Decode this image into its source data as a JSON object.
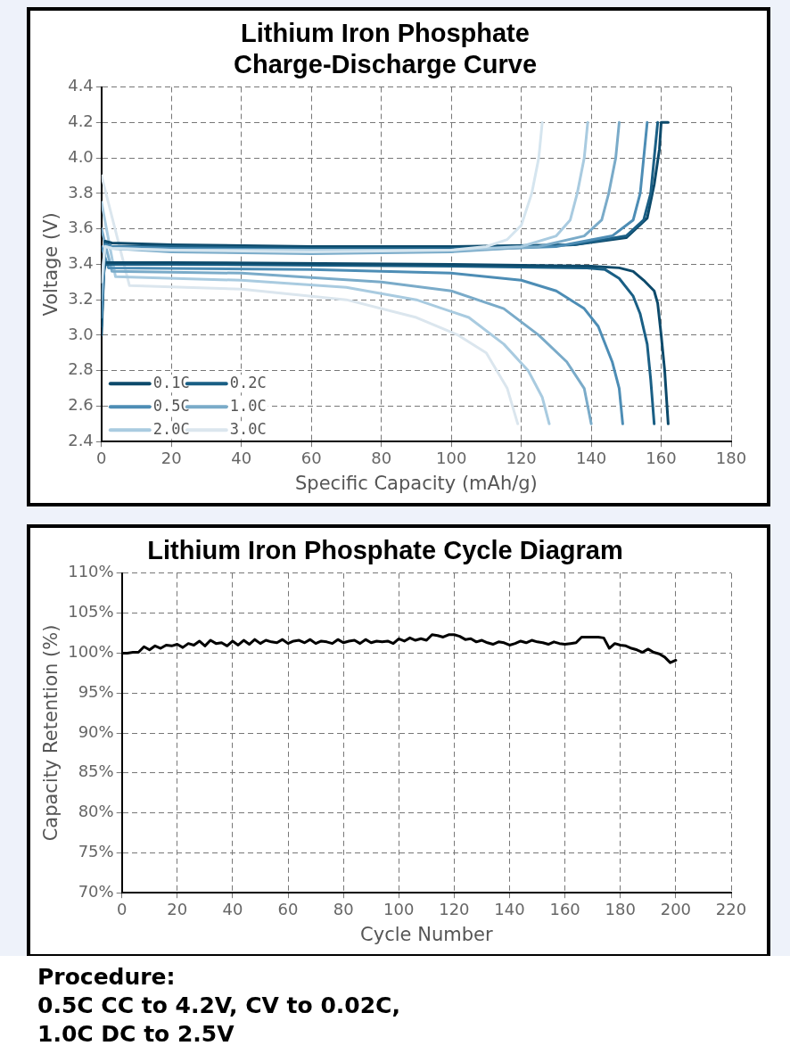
{
  "chart_data": [
    {
      "type": "line",
      "title": "Lithium Iron Phosphate\nCharge-Discharge Curve",
      "xlabel": "Specific Capacity (mAh/g)",
      "ylabel": "Voltage (V)",
      "xlim": [
        0,
        180
      ],
      "xticks": [
        0,
        20,
        40,
        60,
        80,
        100,
        120,
        140,
        160,
        180
      ],
      "ylim": [
        2.4,
        4.4
      ],
      "yticks": [
        2.4,
        2.6,
        2.8,
        {
          "value": 3,
          "label": "3.0"
        },
        3.2,
        3.4,
        3.6,
        3.8,
        {
          "value": 4,
          "label": "4.0"
        },
        4.2,
        4.4
      ],
      "grid": true,
      "legend": "bottom left",
      "marker": "none",
      "line_style": "solid",
      "series": [
        {
          "color": "#d5e5ef",
          "x": [
            0,
            1,
            3,
            20,
            60,
            100,
            110,
            116,
            120,
            123,
            125,
            126
          ],
          "values": [
            3.3,
            3.5,
            3.49,
            3.48,
            3.47,
            3.48,
            3.5,
            3.54,
            3.62,
            3.8,
            4.0,
            4.2
          ]
        },
        {
          "color": "#a9cbe0",
          "x": [
            0,
            1,
            3,
            20,
            60,
            100,
            120,
            130,
            134,
            136,
            138,
            139
          ],
          "values": [
            3.3,
            3.5,
            3.49,
            3.48,
            3.48,
            3.48,
            3.5,
            3.56,
            3.65,
            3.8,
            4.0,
            4.2
          ]
        },
        {
          "color": "#7aabc9",
          "x": [
            0,
            1,
            3,
            20,
            60,
            100,
            125,
            138,
            143,
            145,
            147,
            148
          ],
          "values": [
            3.2,
            3.5,
            3.49,
            3.47,
            3.46,
            3.47,
            3.5,
            3.56,
            3.65,
            3.8,
            4.0,
            4.2
          ]
        },
        {
          "color": "#4d8db5",
          "x": [
            0,
            1,
            3,
            20,
            60,
            100,
            130,
            146,
            152,
            154,
            155,
            156
          ],
          "values": [
            3.1,
            3.51,
            3.5,
            3.49,
            3.48,
            3.48,
            3.5,
            3.56,
            3.65,
            3.8,
            4.0,
            4.2
          ]
        },
        {
          "color": "#1a5f85",
          "x": [
            0,
            1,
            3,
            20,
            60,
            100,
            135,
            150,
            155,
            157,
            158,
            159
          ],
          "values": [
            3.05,
            3.52,
            3.5,
            3.5,
            3.49,
            3.49,
            3.51,
            3.56,
            3.65,
            3.8,
            4.0,
            4.2
          ]
        },
        {
          "color": "#0d4a6b",
          "x": [
            0,
            1,
            3,
            20,
            60,
            100,
            135,
            150,
            156,
            158,
            159.5,
            160,
            162
          ],
          "values": [
            3.0,
            3.53,
            3.52,
            3.51,
            3.5,
            3.5,
            3.51,
            3.55,
            3.66,
            3.85,
            4.05,
            4.2,
            4.2
          ]
        },
        {
          "name": "0.1C",
          "color": "#0d4a6b",
          "x": [
            0,
            1,
            20,
            100,
            140,
            148,
            152,
            155,
            158,
            159,
            160,
            161,
            162
          ],
          "values": [
            3.22,
            3.41,
            3.41,
            3.4,
            3.39,
            3.38,
            3.36,
            3.31,
            3.25,
            3.18,
            3.0,
            2.8,
            2.5
          ]
        },
        {
          "name": "0.2C",
          "color": "#1a5f85",
          "x": [
            0,
            1,
            20,
            100,
            138,
            144,
            148,
            152,
            154,
            156,
            157,
            158
          ],
          "values": [
            3.3,
            3.4,
            3.4,
            3.39,
            3.38,
            3.37,
            3.32,
            3.22,
            3.12,
            2.95,
            2.75,
            2.5
          ]
        },
        {
          "name": "0.5C",
          "color": "#4d8db5",
          "x": [
            0,
            2,
            60,
            100,
            120,
            130,
            138,
            142,
            146,
            148,
            149
          ],
          "values": [
            3.5,
            3.38,
            3.37,
            3.35,
            3.31,
            3.25,
            3.15,
            3.05,
            2.85,
            2.7,
            2.5
          ]
        },
        {
          "name": "1.0C",
          "color": "#7aabc9",
          "x": [
            0,
            3,
            40,
            80,
            100,
            115,
            125,
            133,
            138,
            140
          ],
          "values": [
            3.6,
            3.36,
            3.35,
            3.3,
            3.25,
            3.15,
            3.0,
            2.85,
            2.7,
            2.5
          ]
        },
        {
          "name": "2.0C",
          "color": "#a9cbe0",
          "x": [
            0,
            4,
            40,
            70,
            90,
            105,
            115,
            122,
            126,
            128
          ],
          "values": [
            3.75,
            3.33,
            3.31,
            3.27,
            3.2,
            3.1,
            2.95,
            2.8,
            2.65,
            2.5
          ]
        },
        {
          "name": "3.0C",
          "color": "#dbe6ee",
          "x": [
            0,
            8,
            40,
            70,
            90,
            102,
            110,
            116,
            119
          ],
          "values": [
            3.9,
            3.28,
            3.26,
            3.2,
            3.1,
            3.0,
            2.9,
            2.7,
            2.5
          ]
        }
      ]
    },
    {
      "type": "line",
      "title": "Lithium Iron Phosphate Cycle Diagram",
      "xlabel": "Cycle Number",
      "ylabel": "Capacity Retention (%)",
      "xlim": [
        0,
        220
      ],
      "xticks": [
        0,
        20,
        40,
        60,
        80,
        100,
        120,
        140,
        160,
        180,
        200,
        220
      ],
      "ylim": [
        70,
        110
      ],
      "yticks": [
        {
          "value": 70,
          "label": "70%"
        },
        {
          "value": 75,
          "label": "75%"
        },
        {
          "value": 80,
          "label": "80%"
        },
        {
          "value": 85,
          "label": "85%"
        },
        {
          "value": 90,
          "label": "90%"
        },
        {
          "value": 95,
          "label": "95%"
        },
        {
          "value": 100,
          "label": "100%"
        },
        {
          "value": 105,
          "label": "105%"
        },
        {
          "value": 110,
          "label": "110%"
        }
      ],
      "grid": true,
      "marker": "none",
      "line_style": "solid",
      "annotations": [
        "Procedure:\n0.5C CC to 4.2V, CV to 0.02C,\n1.0C DC to 2.5V"
      ],
      "series": [
        {
          "color": "#000000",
          "x": [
            0,
            2,
            4,
            6,
            8,
            10,
            12,
            14,
            16,
            18,
            20,
            22,
            24,
            26,
            28,
            30,
            32,
            34,
            36,
            38,
            40,
            42,
            44,
            46,
            48,
            50,
            52,
            54,
            56,
            58,
            60,
            62,
            64,
            66,
            68,
            70,
            72,
            74,
            76,
            78,
            80,
            82,
            84,
            86,
            88,
            90,
            92,
            94,
            96,
            98,
            100,
            102,
            104,
            106,
            108,
            110,
            112,
            114,
            116,
            118,
            120,
            122,
            124,
            126,
            128,
            130,
            132,
            134,
            136,
            138,
            140,
            142,
            144,
            146,
            148,
            150,
            152,
            154,
            156,
            158,
            160,
            162,
            164,
            166,
            168,
            170,
            172,
            174,
            176,
            178,
            180,
            182,
            184,
            186,
            188,
            190,
            192,
            194,
            196,
            198,
            200
          ],
          "values": [
            100.0,
            100.0,
            100.1,
            100.1,
            100.8,
            100.4,
            100.9,
            100.6,
            101.0,
            100.9,
            101.1,
            100.7,
            101.2,
            101.0,
            101.5,
            100.9,
            101.6,
            101.2,
            101.3,
            100.9,
            101.5,
            101.0,
            101.6,
            101.1,
            101.7,
            101.2,
            101.6,
            101.4,
            101.3,
            101.7,
            101.2,
            101.5,
            101.6,
            101.3,
            101.7,
            101.2,
            101.5,
            101.4,
            101.2,
            101.7,
            101.3,
            101.5,
            101.6,
            101.2,
            101.7,
            101.3,
            101.5,
            101.4,
            101.5,
            101.2,
            101.8,
            101.5,
            101.9,
            101.6,
            101.8,
            101.6,
            102.3,
            102.2,
            102.0,
            102.3,
            102.3,
            102.1,
            101.7,
            101.8,
            101.4,
            101.6,
            101.3,
            101.1,
            101.4,
            101.3,
            101.0,
            101.2,
            101.5,
            101.3,
            101.6,
            101.4,
            101.3,
            101.1,
            101.4,
            101.2,
            101.1,
            101.2,
            101.3,
            102.0,
            102.0,
            102.0,
            102.0,
            101.9,
            100.6,
            101.2,
            101.0,
            100.9,
            100.6,
            100.4,
            100.1,
            100.5,
            100.1,
            99.9,
            99.5,
            98.8,
            99.1
          ]
        }
      ]
    }
  ]
}
